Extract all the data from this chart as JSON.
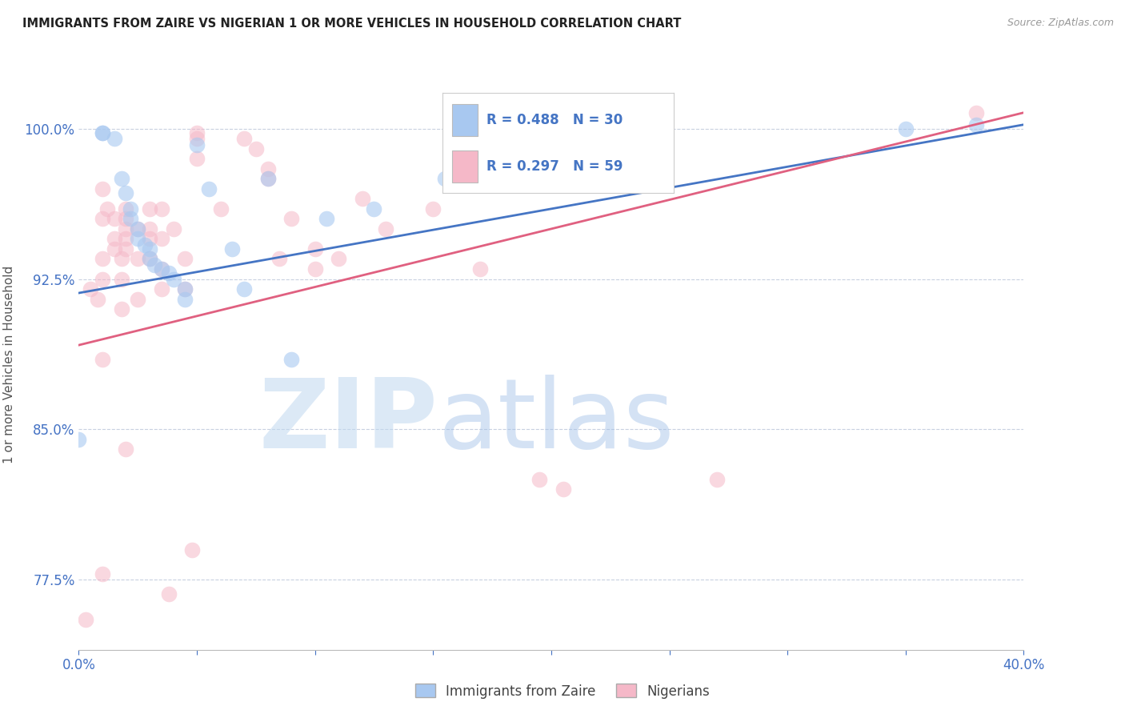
{
  "title": "IMMIGRANTS FROM ZAIRE VS NIGERIAN 1 OR MORE VEHICLES IN HOUSEHOLD CORRELATION CHART",
  "source_text": "Source: ZipAtlas.com",
  "ylabel": "1 or more Vehicles in Household",
  "watermark_zip": "ZIP",
  "watermark_atlas": "atlas",
  "x_min": 0.0,
  "x_max": 40.0,
  "y_min": 74.0,
  "y_max": 102.5,
  "y_ticks": [
    77.5,
    85.0,
    92.5,
    100.0
  ],
  "x_ticks": [
    0.0,
    5.0,
    10.0,
    15.0,
    20.0,
    25.0,
    30.0,
    35.0,
    40.0
  ],
  "blue_color": "#A8C8F0",
  "pink_color": "#F5B8C8",
  "blue_line_color": "#4575C4",
  "pink_line_color": "#E06080",
  "blue_line_x0": 0.0,
  "blue_line_y0": 91.8,
  "blue_line_x1": 40.0,
  "blue_line_y1": 100.2,
  "pink_line_x0": 0.0,
  "pink_line_y0": 89.2,
  "pink_line_x1": 40.0,
  "pink_line_y1": 100.8,
  "blue_scatter": [
    [
      0.0,
      84.5
    ],
    [
      1.0,
      99.8
    ],
    [
      1.0,
      99.8
    ],
    [
      1.5,
      99.5
    ],
    [
      1.8,
      97.5
    ],
    [
      2.0,
      96.8
    ],
    [
      2.2,
      96.0
    ],
    [
      2.2,
      95.5
    ],
    [
      2.5,
      95.0
    ],
    [
      2.5,
      94.5
    ],
    [
      2.8,
      94.2
    ],
    [
      3.0,
      94.0
    ],
    [
      3.0,
      93.5
    ],
    [
      3.2,
      93.2
    ],
    [
      3.5,
      93.0
    ],
    [
      3.8,
      92.8
    ],
    [
      4.0,
      92.5
    ],
    [
      4.5,
      92.0
    ],
    [
      4.5,
      91.5
    ],
    [
      5.0,
      99.2
    ],
    [
      5.5,
      97.0
    ],
    [
      6.5,
      94.0
    ],
    [
      7.0,
      92.0
    ],
    [
      8.0,
      97.5
    ],
    [
      9.0,
      88.5
    ],
    [
      10.5,
      95.5
    ],
    [
      12.5,
      96.0
    ],
    [
      15.5,
      97.5
    ],
    [
      35.0,
      100.0
    ],
    [
      38.0,
      100.2
    ]
  ],
  "pink_scatter": [
    [
      0.3,
      75.5
    ],
    [
      0.5,
      92.0
    ],
    [
      0.8,
      91.5
    ],
    [
      1.0,
      93.5
    ],
    [
      1.0,
      92.5
    ],
    [
      1.0,
      95.5
    ],
    [
      1.0,
      97.0
    ],
    [
      1.2,
      96.0
    ],
    [
      1.5,
      95.5
    ],
    [
      1.5,
      94.5
    ],
    [
      1.5,
      94.0
    ],
    [
      1.8,
      93.5
    ],
    [
      1.8,
      92.5
    ],
    [
      1.8,
      91.0
    ],
    [
      2.0,
      96.0
    ],
    [
      2.0,
      95.5
    ],
    [
      2.0,
      95.0
    ],
    [
      2.0,
      94.5
    ],
    [
      2.0,
      94.0
    ],
    [
      2.5,
      95.0
    ],
    [
      2.5,
      93.5
    ],
    [
      2.5,
      91.5
    ],
    [
      3.0,
      96.0
    ],
    [
      3.0,
      95.0
    ],
    [
      3.0,
      94.5
    ],
    [
      3.0,
      93.5
    ],
    [
      3.5,
      96.0
    ],
    [
      3.5,
      94.5
    ],
    [
      3.5,
      93.0
    ],
    [
      3.5,
      92.0
    ],
    [
      4.0,
      95.0
    ],
    [
      4.5,
      93.5
    ],
    [
      4.5,
      92.0
    ],
    [
      5.0,
      99.8
    ],
    [
      5.0,
      99.5
    ],
    [
      5.0,
      98.5
    ],
    [
      6.0,
      96.0
    ],
    [
      7.0,
      99.5
    ],
    [
      7.5,
      99.0
    ],
    [
      8.0,
      98.0
    ],
    [
      8.0,
      97.5
    ],
    [
      9.0,
      95.5
    ],
    [
      10.0,
      94.0
    ],
    [
      10.0,
      93.0
    ],
    [
      11.0,
      93.5
    ],
    [
      12.0,
      96.5
    ],
    [
      13.0,
      95.0
    ],
    [
      15.0,
      96.0
    ],
    [
      17.0,
      93.0
    ],
    [
      1.0,
      88.5
    ],
    [
      1.0,
      77.8
    ],
    [
      2.0,
      84.0
    ],
    [
      3.8,
      76.8
    ],
    [
      4.8,
      79.0
    ],
    [
      19.5,
      82.5
    ],
    [
      20.5,
      82.0
    ],
    [
      27.0,
      82.5
    ],
    [
      38.0,
      100.8
    ],
    [
      8.5,
      93.5
    ]
  ],
  "title_fontsize": 10.5,
  "tick_color": "#4472C4",
  "grid_color": "#C8D0E0",
  "background_color": "#FFFFFF",
  "legend_label1": "Immigrants from Zaire",
  "legend_label2": "Nigerians"
}
